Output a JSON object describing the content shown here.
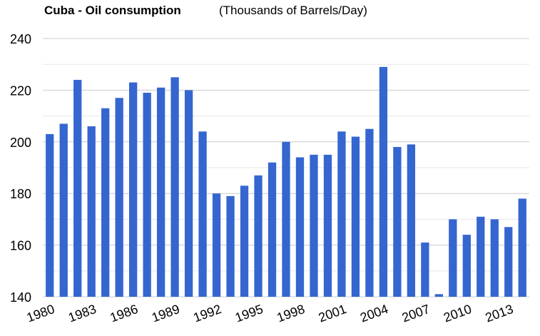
{
  "chart_data": {
    "type": "bar",
    "title": "Cuba - Oil consumption",
    "subtitle": "(Thousands of Barrels/Day)",
    "xlabel": "",
    "ylabel": "",
    "ylim": [
      140,
      240
    ],
    "y_ticks": [
      "140",
      "160",
      "180",
      "200",
      "220",
      "240"
    ],
    "grid": true,
    "legend": "none",
    "bar_color": "#3566d0",
    "grid_color": "#cccccc",
    "categories": [
      "1980",
      "1981",
      "1982",
      "1983",
      "1984",
      "1985",
      "1986",
      "1987",
      "1988",
      "1989",
      "1990",
      "1991",
      "1992",
      "1993",
      "1994",
      "1995",
      "1996",
      "1997",
      "1998",
      "1999",
      "2000",
      "2001",
      "2002",
      "2003",
      "2004",
      "2005",
      "2006",
      "2007",
      "2008",
      "2009",
      "2010",
      "2011",
      "2012",
      "2013",
      "2014"
    ],
    "values": [
      203,
      207,
      224,
      206,
      213,
      217,
      223,
      219,
      221,
      225,
      220,
      204,
      180,
      179,
      183,
      187,
      192,
      200,
      194,
      195,
      195,
      204,
      202,
      205,
      229,
      198,
      199,
      161,
      141,
      170,
      164,
      171,
      170,
      167,
      178
    ],
    "x_tick_labels": [
      "1980",
      "1983",
      "1986",
      "1989",
      "1992",
      "1995",
      "1998",
      "2001",
      "2004",
      "2007",
      "2010",
      "2013"
    ]
  }
}
